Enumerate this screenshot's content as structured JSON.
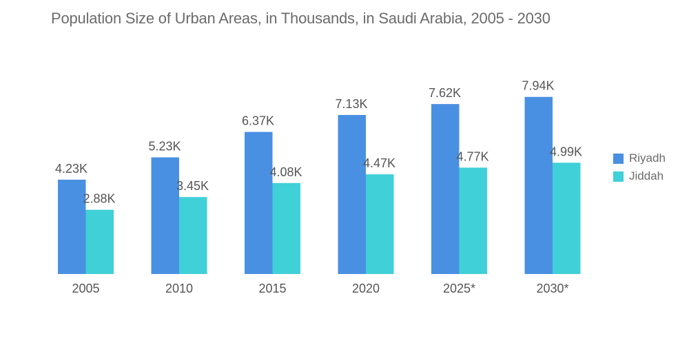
{
  "chart_data": {
    "type": "bar",
    "title": "Population Size of Urban Areas, in Thousands, in Saudi Arabia, 2005 - 2030",
    "xlabel": "",
    "ylabel": "",
    "categories": [
      "2005",
      "2010",
      "2015",
      "2020",
      "2025*",
      "2030*"
    ],
    "series": [
      {
        "name": "Riyadh",
        "color": "#4a90e2",
        "values": [
          4.23,
          5.23,
          6.37,
          7.13,
          7.62,
          7.94
        ],
        "labels": [
          "4.23K",
          "5.23K",
          "6.37K",
          "7.13K",
          "7.62K",
          "7.94K"
        ]
      },
      {
        "name": "Jiddah",
        "color": "#40d0d8",
        "values": [
          2.88,
          3.45,
          4.08,
          4.47,
          4.77,
          4.99
        ],
        "labels": [
          "2.88K",
          "3.45K",
          "4.08K",
          "4.47K",
          "4.77K",
          "4.99K"
        ]
      }
    ],
    "ylim": [
      0,
      8
    ],
    "grid": false,
    "legend": "right"
  }
}
